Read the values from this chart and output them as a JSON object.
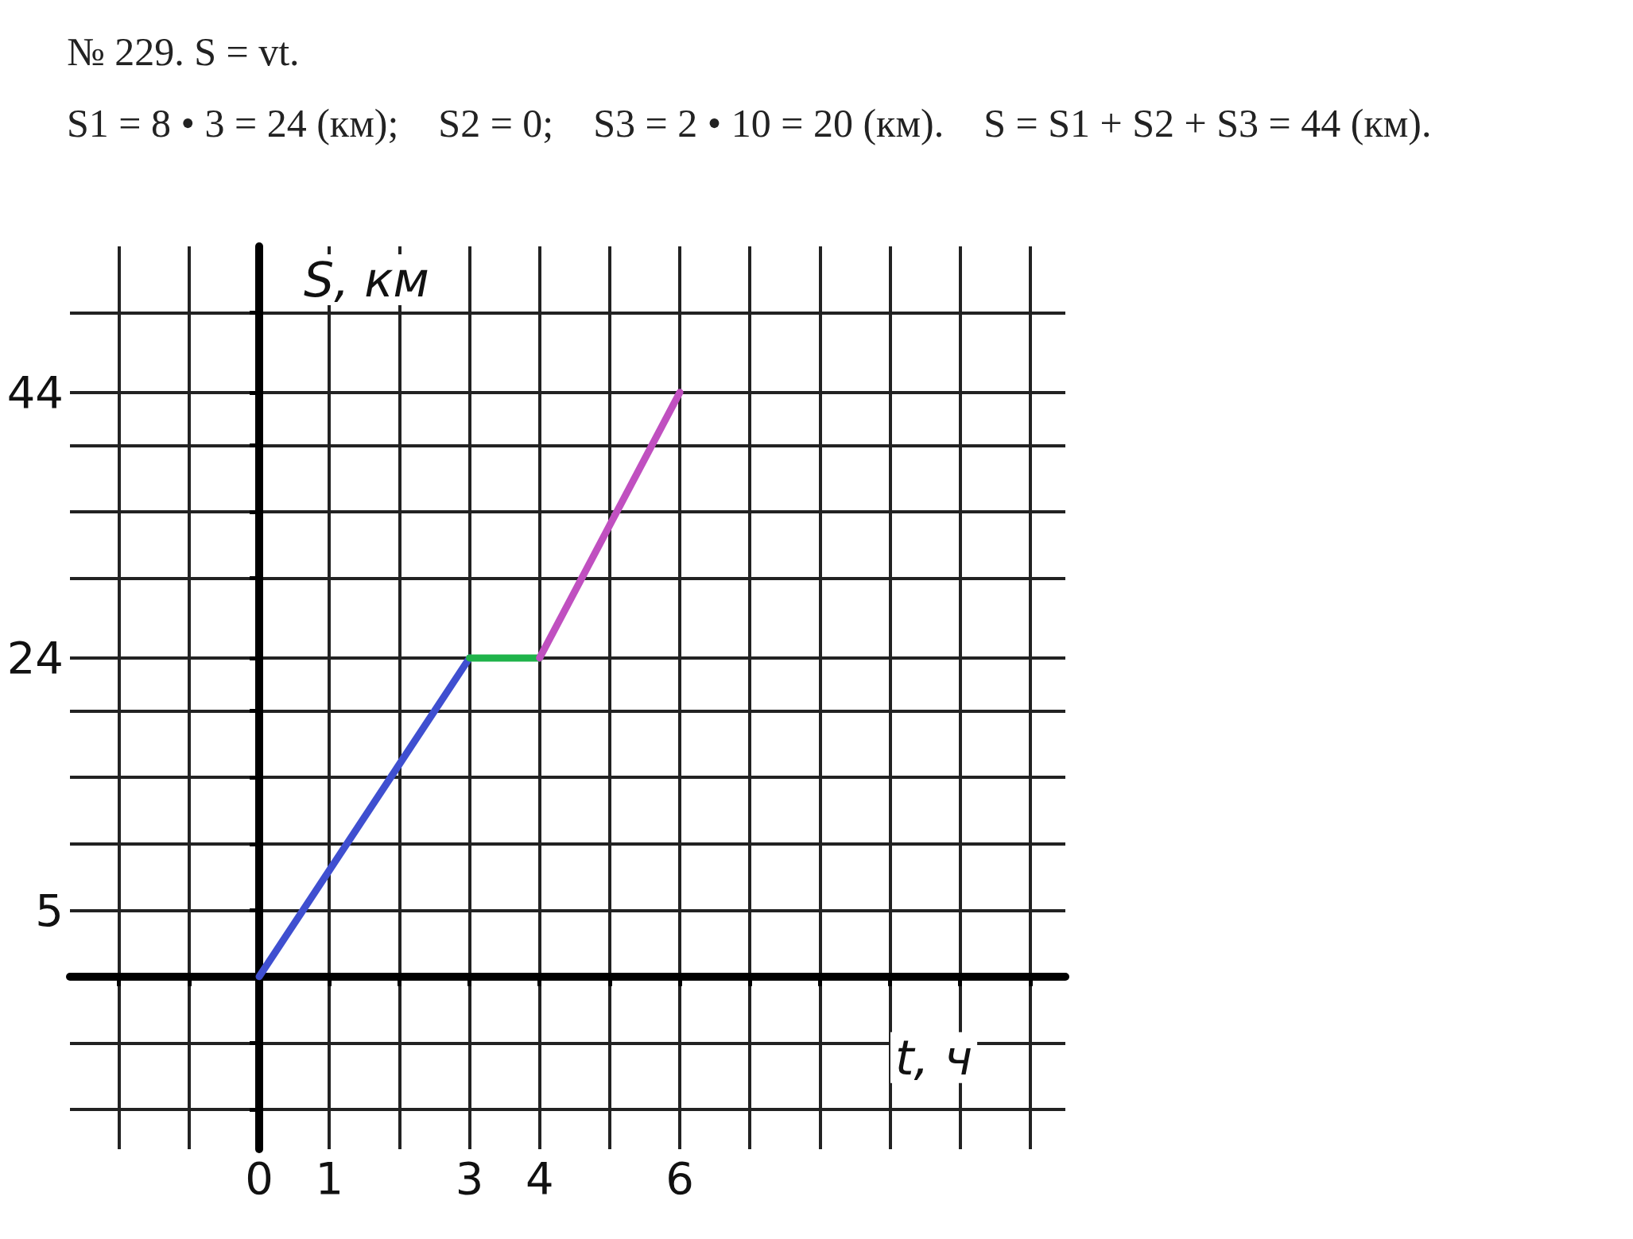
{
  "chart_data": {
    "type": "line",
    "title": "№ 229. S = vt.",
    "annotations": [
      "S1 = 8 • 3 = 24 (км);",
      "S2 = 0;",
      "S3 = 2 • 10 = 20 (км).",
      "S = S1 + S2 + S3 = 44 (км)."
    ],
    "xlabel": "t, ч",
    "ylabel": "S, км",
    "series": [
      {
        "color": "#3f4fd0",
        "x": [
          0,
          3
        ],
        "values": [
          0,
          24
        ]
      },
      {
        "color": "#1fb34a",
        "x": [
          3,
          4
        ],
        "values": [
          24,
          24
        ]
      },
      {
        "color": "#c050c0",
        "x": [
          4,
          6
        ],
        "values": [
          24,
          44
        ]
      }
    ],
    "xlim": [
      -2.7,
      11.5
    ],
    "xticks": [
      {
        "value": -2,
        "label": null
      },
      {
        "value": -1,
        "label": null
      },
      0,
      1,
      {
        "value": 2,
        "label": null
      },
      3,
      4,
      {
        "value": 5,
        "label": null
      },
      6,
      {
        "value": 7,
        "label": null
      },
      {
        "value": 8,
        "label": null
      },
      {
        "value": 9,
        "label": null
      },
      {
        "value": 10,
        "label": null
      },
      {
        "value": 11,
        "label": null
      }
    ],
    "ylim": [
      -13,
      55
    ],
    "yticks": [
      {
        "value": -10,
        "label": null
      },
      {
        "value": -5,
        "label": null
      },
      5,
      {
        "value": 10,
        "label": null
      },
      {
        "value": 15,
        "label": null
      },
      {
        "value": 20,
        "label": null
      },
      24,
      {
        "value": 30,
        "label": null
      },
      {
        "value": 35,
        "label": null
      },
      {
        "value": 40,
        "label": null
      },
      44,
      {
        "value": 50,
        "label": null
      }
    ],
    "grid": true,
    "marker": "none",
    "line_style": "solid"
  }
}
